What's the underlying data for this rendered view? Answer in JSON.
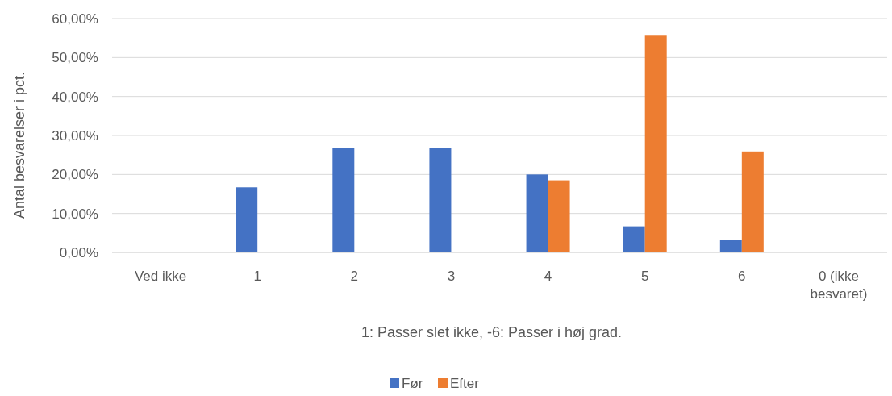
{
  "chart_data": {
    "type": "bar",
    "xlabel": "1: Passer slet ikke, -6: Passer i høj grad.",
    "ylabel": "Antal besvarelser i pct.",
    "categories": [
      "Ved ikke",
      "1",
      "2",
      "3",
      "4",
      "5",
      "6",
      "0 (ikke besvaret)"
    ],
    "series": [
      {
        "name": "Før",
        "color": "#4472c4",
        "values": [
          0,
          16.7,
          26.7,
          26.7,
          20,
          6.7,
          3.3,
          0
        ]
      },
      {
        "name": "Efter",
        "color": "#ed7d31",
        "values": [
          0,
          0,
          0,
          0,
          18.5,
          55.6,
          25.9,
          0
        ]
      }
    ],
    "ylim": [
      0,
      60
    ],
    "yticks": [
      {
        "value": 0,
        "label": "0,00%"
      },
      {
        "value": 10,
        "label": "10,00%"
      },
      {
        "value": 20,
        "label": "20,00%"
      },
      {
        "value": 30,
        "label": "30,00%"
      },
      {
        "value": 40,
        "label": "40,00%"
      },
      {
        "value": 50,
        "label": "50,00%"
      },
      {
        "value": 60,
        "label": "60,00%"
      }
    ],
    "grid": "y",
    "legend": "bottom"
  }
}
